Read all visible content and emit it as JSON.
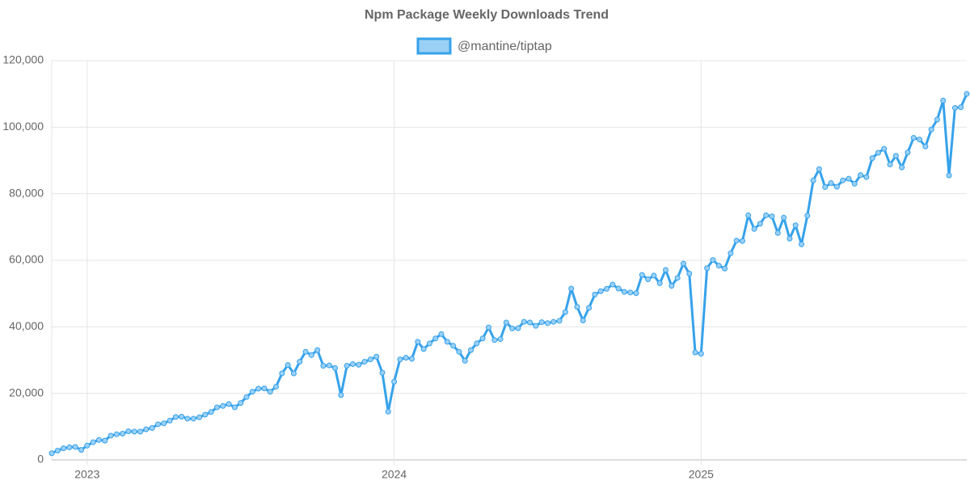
{
  "chart_data": {
    "type": "line",
    "title": "Npm Package Weekly Downloads Trend",
    "categories": [
      null,
      null,
      null,
      null,
      null,
      null,
      "2023",
      null,
      null,
      null,
      null,
      null,
      null,
      null,
      null,
      null,
      null,
      null,
      null,
      null,
      null,
      null,
      null,
      null,
      null,
      null,
      null,
      null,
      null,
      null,
      null,
      null,
      null,
      null,
      null,
      null,
      null,
      null,
      null,
      null,
      null,
      null,
      null,
      null,
      null,
      null,
      null,
      null,
      null,
      null,
      null,
      null,
      null,
      null,
      null,
      null,
      null,
      null,
      "2024",
      null,
      null,
      null,
      null,
      null,
      null,
      null,
      null,
      null,
      null,
      null,
      null,
      null,
      null,
      null,
      null,
      null,
      null,
      null,
      null,
      null,
      null,
      null,
      null,
      null,
      null,
      null,
      null,
      null,
      null,
      null,
      null,
      null,
      null,
      null,
      null,
      null,
      null,
      null,
      null,
      null,
      null,
      null,
      null,
      null,
      null,
      null,
      null,
      null,
      null,
      null,
      "2025",
      null,
      null,
      null,
      null,
      null,
      null,
      null,
      null,
      null,
      null,
      null,
      null,
      null,
      null,
      null,
      null,
      null,
      null,
      null,
      null,
      null,
      null,
      null,
      null,
      null,
      null,
      null,
      null,
      null,
      null,
      null,
      null,
      null,
      null,
      null,
      null,
      null,
      null,
      null,
      null,
      null,
      null,
      null,
      null,
      null
    ],
    "series": [
      {
        "name": "@mantine/tiptap",
        "color": "#36a2eb",
        "fill": "#9ad0f5",
        "values": [
          2000,
          2800,
          3500,
          3800,
          3900,
          3000,
          4300,
          5300,
          6000,
          5800,
          7300,
          7700,
          7900,
          8600,
          8500,
          8500,
          9200,
          9600,
          10700,
          11000,
          11800,
          12900,
          13000,
          12400,
          12400,
          12800,
          13600,
          14400,
          15800,
          16200,
          16800,
          15800,
          17100,
          18900,
          20500,
          21400,
          21500,
          20500,
          22000,
          26000,
          28500,
          26000,
          29500,
          32500,
          31500,
          33000,
          28300,
          28400,
          27600,
          19500,
          28300,
          28800,
          28600,
          29500,
          30200,
          31000,
          26200,
          14500,
          23500,
          30200,
          30700,
          30400,
          35500,
          33300,
          35000,
          36500,
          37800,
          35500,
          34300,
          32500,
          29800,
          33000,
          35000,
          36500,
          39800,
          36000,
          36300,
          41300,
          39500,
          39600,
          41500,
          41300,
          40300,
          41400,
          41100,
          41500,
          41800,
          44400,
          51500,
          46000,
          41900,
          45700,
          49700,
          50700,
          51400,
          52700,
          51500,
          50500,
          50300,
          50100,
          55600,
          54300,
          55400,
          53100,
          57100,
          52300,
          54700,
          59000,
          56000,
          32300,
          31900,
          57600,
          60100,
          58400,
          57500,
          62100,
          65900,
          65800,
          73500,
          69400,
          71000,
          73500,
          73200,
          68200,
          72800,
          66500,
          70500,
          64800,
          73400,
          84000,
          87400,
          82000,
          83200,
          82100,
          84000,
          84500,
          83000,
          85600,
          85000,
          90700,
          92300,
          93500,
          88800,
          91400,
          87900,
          92400,
          96800,
          96300,
          94200,
          99300,
          102300,
          108000,
          85500,
          105800,
          106000,
          110000
        ]
      }
    ],
    "ylim": [
      0,
      120000
    ],
    "yticks": [
      0,
      {
        "value": 20000,
        "label": "20,000"
      },
      {
        "value": 40000,
        "label": "40,000"
      },
      {
        "value": 60000,
        "label": "60,000"
      },
      {
        "value": 80000,
        "label": "80,000"
      },
      {
        "value": 100000,
        "label": "100,000"
      },
      {
        "value": 120000,
        "label": "120,000"
      }
    ],
    "grid": true,
    "legend": "top"
  }
}
